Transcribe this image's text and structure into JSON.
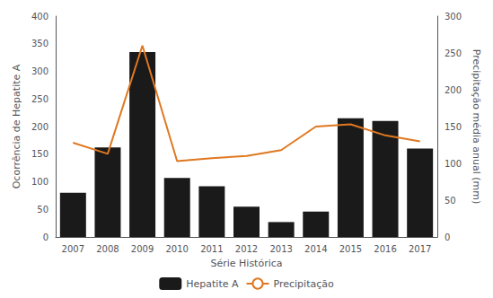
{
  "chart_data": {
    "type": "bar",
    "xlabel": "Série Histórica",
    "ylabel": "Ocorrência de Hepatite A",
    "y2label": "Precipitação média anual (mm)",
    "categories": [
      "2007",
      "2008",
      "2009",
      "2010",
      "2011",
      "2012",
      "2013",
      "2014",
      "2015",
      "2016",
      "2017"
    ],
    "series": [
      {
        "name": "Hepatite A",
        "type": "bar",
        "color": "#1a1a1a",
        "values": [
          80,
          162,
          335,
          107,
          92,
          55,
          27,
          46,
          215,
          210,
          160
        ]
      },
      {
        "name": "Precipitação",
        "type": "line",
        "color": "#e07820",
        "axis": "y2",
        "marker": "none",
        "values": [
          128,
          113,
          260,
          103,
          107,
          110,
          118,
          150,
          153,
          138,
          130
        ]
      }
    ],
    "ylim": [
      0,
      400
    ],
    "yticks": [
      0,
      50,
      100,
      150,
      200,
      250,
      300,
      350,
      400
    ],
    "y2lim": [
      0,
      300
    ],
    "y2ticks": [
      0,
      50,
      100,
      150,
      200,
      250,
      300
    ],
    "legend": "bottom",
    "grid": false
  }
}
